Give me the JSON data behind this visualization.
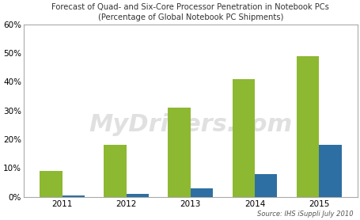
{
  "title_line1": "Forecast of Quad- and Six-Core Processor Penetration in Notebook PCs",
  "title_line2": "(Percentage of Global Notebook PC Shipments)",
  "years": [
    2011,
    2012,
    2013,
    2014,
    2015
  ],
  "quad_core": [
    9,
    18,
    31,
    41,
    49
  ],
  "six_core": [
    0.5,
    1,
    3,
    8,
    18
  ],
  "quad_color": "#8db832",
  "six_color": "#2e6fa3",
  "ylim": [
    0,
    60
  ],
  "yticks": [
    0,
    10,
    20,
    30,
    40,
    50,
    60
  ],
  "source_text": "Source: IHS iSuppli July 2010",
  "bar_width": 0.35,
  "bg_color": "#ffffff",
  "watermark": "MyDrivers.com",
  "watermark_color": "#c8c8c8"
}
